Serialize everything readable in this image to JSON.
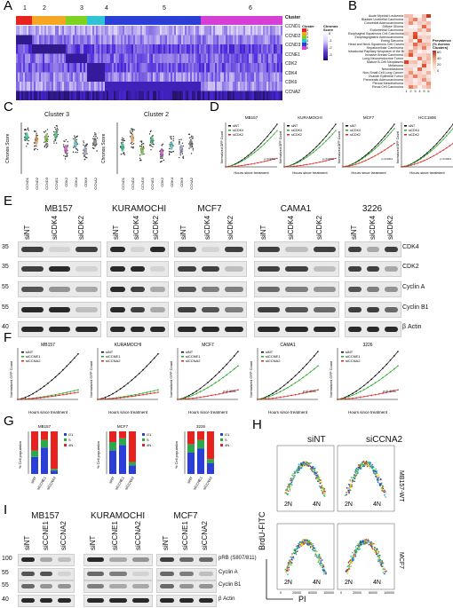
{
  "panels": {
    "A": "A",
    "B": "B",
    "C": "C",
    "D": "D",
    "E": "E",
    "F": "F",
    "G": "G",
    "H": "H",
    "I": "I"
  },
  "panelA": {
    "cluster_numbers": [
      "1",
      "2",
      "3",
      "4",
      "5",
      "6"
    ],
    "row_labels": [
      "Cluster",
      "CCND1",
      "CCND2",
      "CCND3",
      "CCNE1",
      "CDK2",
      "CDK4",
      "CDK6",
      "CCNA2"
    ],
    "legend_cluster_title": "Cluster",
    "legend_cluster_items": [
      "1",
      "2",
      "3",
      "4",
      "5",
      "6"
    ],
    "legend_score_title": "Chronos Score",
    "legend_score_ticks": [
      "0",
      "-1",
      "-2",
      "-3"
    ],
    "cluster_colors": [
      "#e8231f",
      "#f5a623",
      "#7ed321",
      "#2ec4d6",
      "#2b3fd6",
      "#d63fd6"
    ]
  },
  "panelB": {
    "rows": [
      "Acute Myeloid Leukemia",
      "Bladder Urothelial Carcinoma",
      "Colorectal Adenocarcinoma",
      "Diffuse Glioma",
      "Endometrial Carcinoma",
      "Esophageal Squamous Cell Carcinoma",
      "Esophagogastric Adenocarcinoma",
      "Ewing Sarcoma",
      "Head and Neck Squamous Cell Carcinoma",
      "Hepatocellular Carcinoma",
      "Intraductal Papillary Neoplasm of the Bile Duct",
      "Invasive Breast Carcinoma",
      "Lung Neuroendocrine Tumor",
      "Mature B-Cell Neoplasms",
      "Melanoma",
      "Neuroblastoma",
      "Non-Small Cell Lung Cancer",
      "Ovarian Epithelial Tumor",
      "Pancreatic Adenocarcinoma",
      "Pleural Mesothelioma",
      "Renal Cell Carcinoma"
    ],
    "cols": [
      "1",
      "2",
      "3",
      "4",
      "5",
      "6"
    ],
    "legend_title": "Prevalence (% Across Clusters)",
    "legend_ticks": [
      "60",
      "40",
      "20",
      "0"
    ]
  },
  "panelC": {
    "titles": [
      "Cluster 3",
      "Cluster 2"
    ],
    "ylabel": "Chronos Score",
    "xticks": [
      "CCND1",
      "CCND2",
      "CCND3",
      "CCNE1",
      "CDK2",
      "CDK4",
      "CDK6",
      "CCNA2"
    ]
  },
  "panelD": {
    "titles": [
      "MB157",
      "KURAMOCHI",
      "MCF7",
      "HCC1806"
    ],
    "legend": [
      "siNT",
      "siCDK4",
      "siCDK2"
    ],
    "ylabel": "Normalized GFP Count",
    "xlabel": "Hours since treatment",
    "pvals": [
      "p<0.0001",
      "p<0.0001",
      "p<0.0001",
      "p<0.0001"
    ]
  },
  "panelE": {
    "cells": [
      "MB157",
      "KURAMOCHI",
      "MCF7",
      "CAMA1",
      "3226"
    ],
    "lanes": [
      "siNT",
      "siCDK4",
      "siCDK2"
    ],
    "proteins": [
      "CDK4",
      "CDK2",
      "Cyclin A",
      "Cyclin B1",
      "β Actin"
    ],
    "mw": [
      "35",
      "35",
      "55",
      "55",
      "40"
    ]
  },
  "panelF": {
    "titles": [
      "MB157",
      "KURAMOCHI",
      "MCF7",
      "CAMA1",
      "3226"
    ],
    "legend": [
      "siNT",
      "siCCNE1",
      "siCCNA2"
    ],
    "ylabel": "Normalized GFP Count",
    "xlabel": "Hours since treatment",
    "pvals": [
      "p<0.0001",
      "p<0.0001",
      "p<0.0001"
    ]
  },
  "panelG": {
    "titles": [
      "MB157",
      "MCF7",
      "3226"
    ],
    "ylabel": "% Cell population",
    "legend": [
      "G1",
      "S",
      "4N"
    ],
    "lanes": [
      "siNT",
      "siCCNE1",
      "siCCNA2"
    ]
  },
  "panelH": {
    "col_titles": [
      "siNT",
      "siCCNA2"
    ],
    "row_titles": [
      "MB157-WT",
      "MCF7"
    ],
    "ylabel": "BrdU-FITC",
    "xlabel": "PI",
    "gate_2n": "2N",
    "gate_4n": "4N",
    "xticks": [
      "0",
      "20000",
      "60000",
      "100000"
    ]
  },
  "panelI": {
    "cells": [
      "MB157",
      "KURAMOCHI",
      "MCF7"
    ],
    "lanes": [
      "siNT",
      "siCCNE1",
      "siCCNA2"
    ],
    "proteins": [
      "pRB (S807/811)",
      "Cyclin A",
      "Cyclin B1",
      "β Actin"
    ],
    "mw": [
      "100",
      "55",
      "55",
      "40"
    ]
  }
}
